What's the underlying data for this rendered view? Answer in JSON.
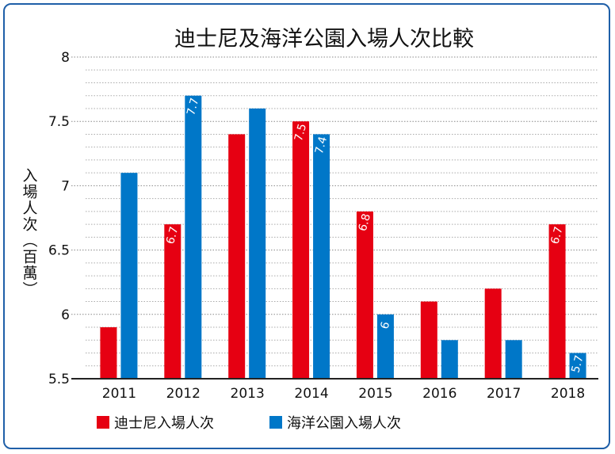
{
  "chart_data": {
    "type": "bar",
    "title": "迪士尼及海洋公園入場人次比較",
    "xlabel": "",
    "ylabel": "入場人次（百萬）",
    "categories": [
      "2011",
      "2012",
      "2013",
      "2014",
      "2015",
      "2016",
      "2017",
      "2018"
    ],
    "series": [
      {
        "name": "迪士尼入場人次",
        "color": "#e60012",
        "values": [
          5.9,
          6.7,
          7.4,
          7.5,
          6.8,
          6.1,
          6.2,
          6.7
        ]
      },
      {
        "name": "海洋公園入場人次",
        "color": "#0077c8",
        "values": [
          7.1,
          7.7,
          7.6,
          7.4,
          6.0,
          5.8,
          5.8,
          5.7
        ]
      }
    ],
    "data_labels": [
      {
        "series": 0,
        "index": 1,
        "text": "6.7"
      },
      {
        "series": 0,
        "index": 3,
        "text": "7.5"
      },
      {
        "series": 0,
        "index": 4,
        "text": "6.8"
      },
      {
        "series": 0,
        "index": 7,
        "text": "6.7"
      },
      {
        "series": 1,
        "index": 1,
        "text": "7.7"
      },
      {
        "series": 1,
        "index": 3,
        "text": "7.4"
      },
      {
        "series": 1,
        "index": 4,
        "text": "6"
      },
      {
        "series": 1,
        "index": 7,
        "text": "5.7"
      }
    ],
    "ylim": [
      5.5,
      8
    ],
    "yticks": [
      "5.5",
      "6",
      "6.5",
      "7",
      "7.5",
      "8"
    ],
    "ytick_values": [
      5.5,
      6,
      6.5,
      7,
      7.5,
      8
    ],
    "grid": true,
    "legend": "bottom-left"
  }
}
